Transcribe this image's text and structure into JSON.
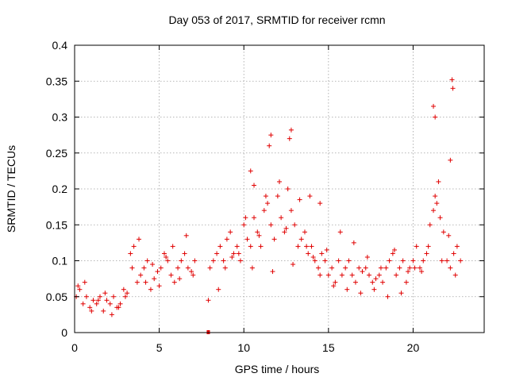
{
  "chart_data": {
    "type": "scatter",
    "title": "Day 053 of 2017, SRMTID for receiver rcmn",
    "xlabel": "GPS time / hours",
    "ylabel": "SRMTID / TECUs",
    "xlim": [
      0,
      24.2
    ],
    "ylim": [
      0,
      0.4
    ],
    "xticks": [
      0,
      5,
      10,
      15,
      20
    ],
    "xtick_labels": [
      "0",
      "5",
      "10",
      "15",
      "20"
    ],
    "yticks": [
      0,
      0.05,
      0.1,
      0.15,
      0.2,
      0.25,
      0.3,
      0.35,
      0.4
    ],
    "ytick_labels": [
      "0",
      "0.05",
      "0.1",
      "0.15",
      "0.2",
      "0.25",
      "0.3",
      "0.35",
      "0.4"
    ],
    "grid": true,
    "marker": "+",
    "color": "#e00000",
    "series": [
      {
        "name": "SRMTID",
        "x": [
          0.1,
          0.3,
          0.5,
          0.7,
          0.9,
          1.1,
          1.3,
          1.5,
          1.7,
          1.9,
          2.1,
          2.3,
          2.5,
          2.7,
          2.9,
          3.1,
          3.3,
          3.5,
          3.7,
          3.9,
          4.1,
          4.3,
          4.5,
          4.7,
          4.9,
          5.1,
          5.3,
          5.5,
          5.7,
          5.9,
          6.1,
          6.3,
          6.5,
          6.7,
          6.9,
          7.1,
          7.9,
          8.0,
          8.2,
          8.4,
          8.6,
          8.8,
          9.0,
          9.2,
          9.4,
          9.6,
          9.8,
          10.0,
          10.2,
          10.4,
          10.6,
          10.8,
          11.0,
          11.2,
          11.4,
          11.6,
          11.8,
          12.0,
          12.2,
          12.4,
          12.6,
          12.8,
          13.0,
          13.2,
          13.4,
          13.6,
          13.8,
          14.0,
          14.2,
          14.4,
          14.6,
          14.8,
          15.0,
          15.2,
          15.4,
          15.6,
          15.8,
          16.0,
          16.2,
          16.4,
          16.6,
          16.8,
          17.0,
          17.2,
          17.4,
          17.6,
          17.8,
          18.0,
          18.2,
          18.4,
          18.6,
          18.8,
          19.0,
          19.2,
          19.4,
          19.6,
          19.8,
          20.0,
          20.2,
          20.4,
          20.6,
          20.8,
          21.0,
          21.2,
          21.4,
          21.6,
          21.8,
          22.0,
          22.2,
          22.4,
          22.6,
          22.8,
          0.2,
          0.6,
          1.0,
          1.4,
          1.8,
          2.2,
          2.6,
          3.0,
          3.4,
          3.8,
          4.2,
          4.6,
          5.0,
          5.4,
          5.8,
          6.2,
          6.6,
          7.0,
          8.5,
          8.9,
          9.3,
          9.7,
          10.1,
          10.5,
          10.9,
          11.3,
          11.7,
          12.1,
          12.5,
          12.9,
          13.3,
          13.7,
          14.1,
          14.5,
          14.9,
          15.3,
          15.7,
          16.1,
          16.5,
          16.9,
          17.3,
          17.7,
          18.1,
          18.5,
          18.9,
          19.3,
          19.7,
          20.1,
          20.5,
          20.9,
          21.3,
          21.7,
          22.1,
          22.5,
          11.5,
          11.6,
          12.7,
          12.8,
          21.2,
          21.3,
          22.3,
          22.35,
          21.5,
          22.2,
          13.9,
          14.5,
          10.4,
          10.6
        ],
        "y": [
          0.05,
          0.06,
          0.04,
          0.05,
          0.035,
          0.045,
          0.04,
          0.05,
          0.03,
          0.045,
          0.04,
          0.05,
          0.035,
          0.04,
          0.06,
          0.055,
          0.11,
          0.12,
          0.07,
          0.08,
          0.09,
          0.1,
          0.06,
          0.075,
          0.085,
          0.09,
          0.11,
          0.1,
          0.08,
          0.07,
          0.09,
          0.1,
          0.11,
          0.09,
          0.085,
          0.1,
          0.045,
          0.09,
          0.1,
          0.11,
          0.12,
          0.1,
          0.13,
          0.14,
          0.11,
          0.12,
          0.1,
          0.15,
          0.13,
          0.12,
          0.16,
          0.14,
          0.12,
          0.17,
          0.18,
          0.15,
          0.13,
          0.19,
          0.16,
          0.14,
          0.2,
          0.17,
          0.15,
          0.12,
          0.13,
          0.14,
          0.11,
          0.12,
          0.1,
          0.09,
          0.11,
          0.1,
          0.08,
          0.09,
          0.07,
          0.1,
          0.08,
          0.09,
          0.1,
          0.08,
          0.07,
          0.09,
          0.085,
          0.09,
          0.08,
          0.07,
          0.075,
          0.08,
          0.07,
          0.09,
          0.1,
          0.11,
          0.08,
          0.09,
          0.1,
          0.07,
          0.09,
          0.1,
          0.12,
          0.09,
          0.1,
          0.11,
          0.15,
          0.17,
          0.18,
          0.16,
          0.14,
          0.1,
          0.09,
          0.11,
          0.12,
          0.1,
          0.065,
          0.07,
          0.03,
          0.045,
          0.055,
          0.025,
          0.035,
          0.05,
          0.09,
          0.13,
          0.07,
          0.095,
          0.065,
          0.105,
          0.12,
          0.075,
          0.135,
          0.08,
          0.06,
          0.09,
          0.105,
          0.11,
          0.16,
          0.09,
          0.135,
          0.19,
          0.085,
          0.21,
          0.145,
          0.095,
          0.185,
          0.12,
          0.105,
          0.08,
          0.115,
          0.065,
          0.14,
          0.06,
          0.125,
          0.055,
          0.105,
          0.06,
          0.09,
          0.05,
          0.115,
          0.055,
          0.085,
          0.09,
          0.085,
          0.12,
          0.19,
          0.1,
          0.135,
          0.08,
          0.26,
          0.275,
          0.27,
          0.282,
          0.315,
          0.3,
          0.352,
          0.34,
          0.21,
          0.24,
          0.19,
          0.18,
          0.225,
          0.205
        ]
      }
    ]
  },
  "outlier_point": {
    "x": 7.9,
    "y": 0.0
  }
}
